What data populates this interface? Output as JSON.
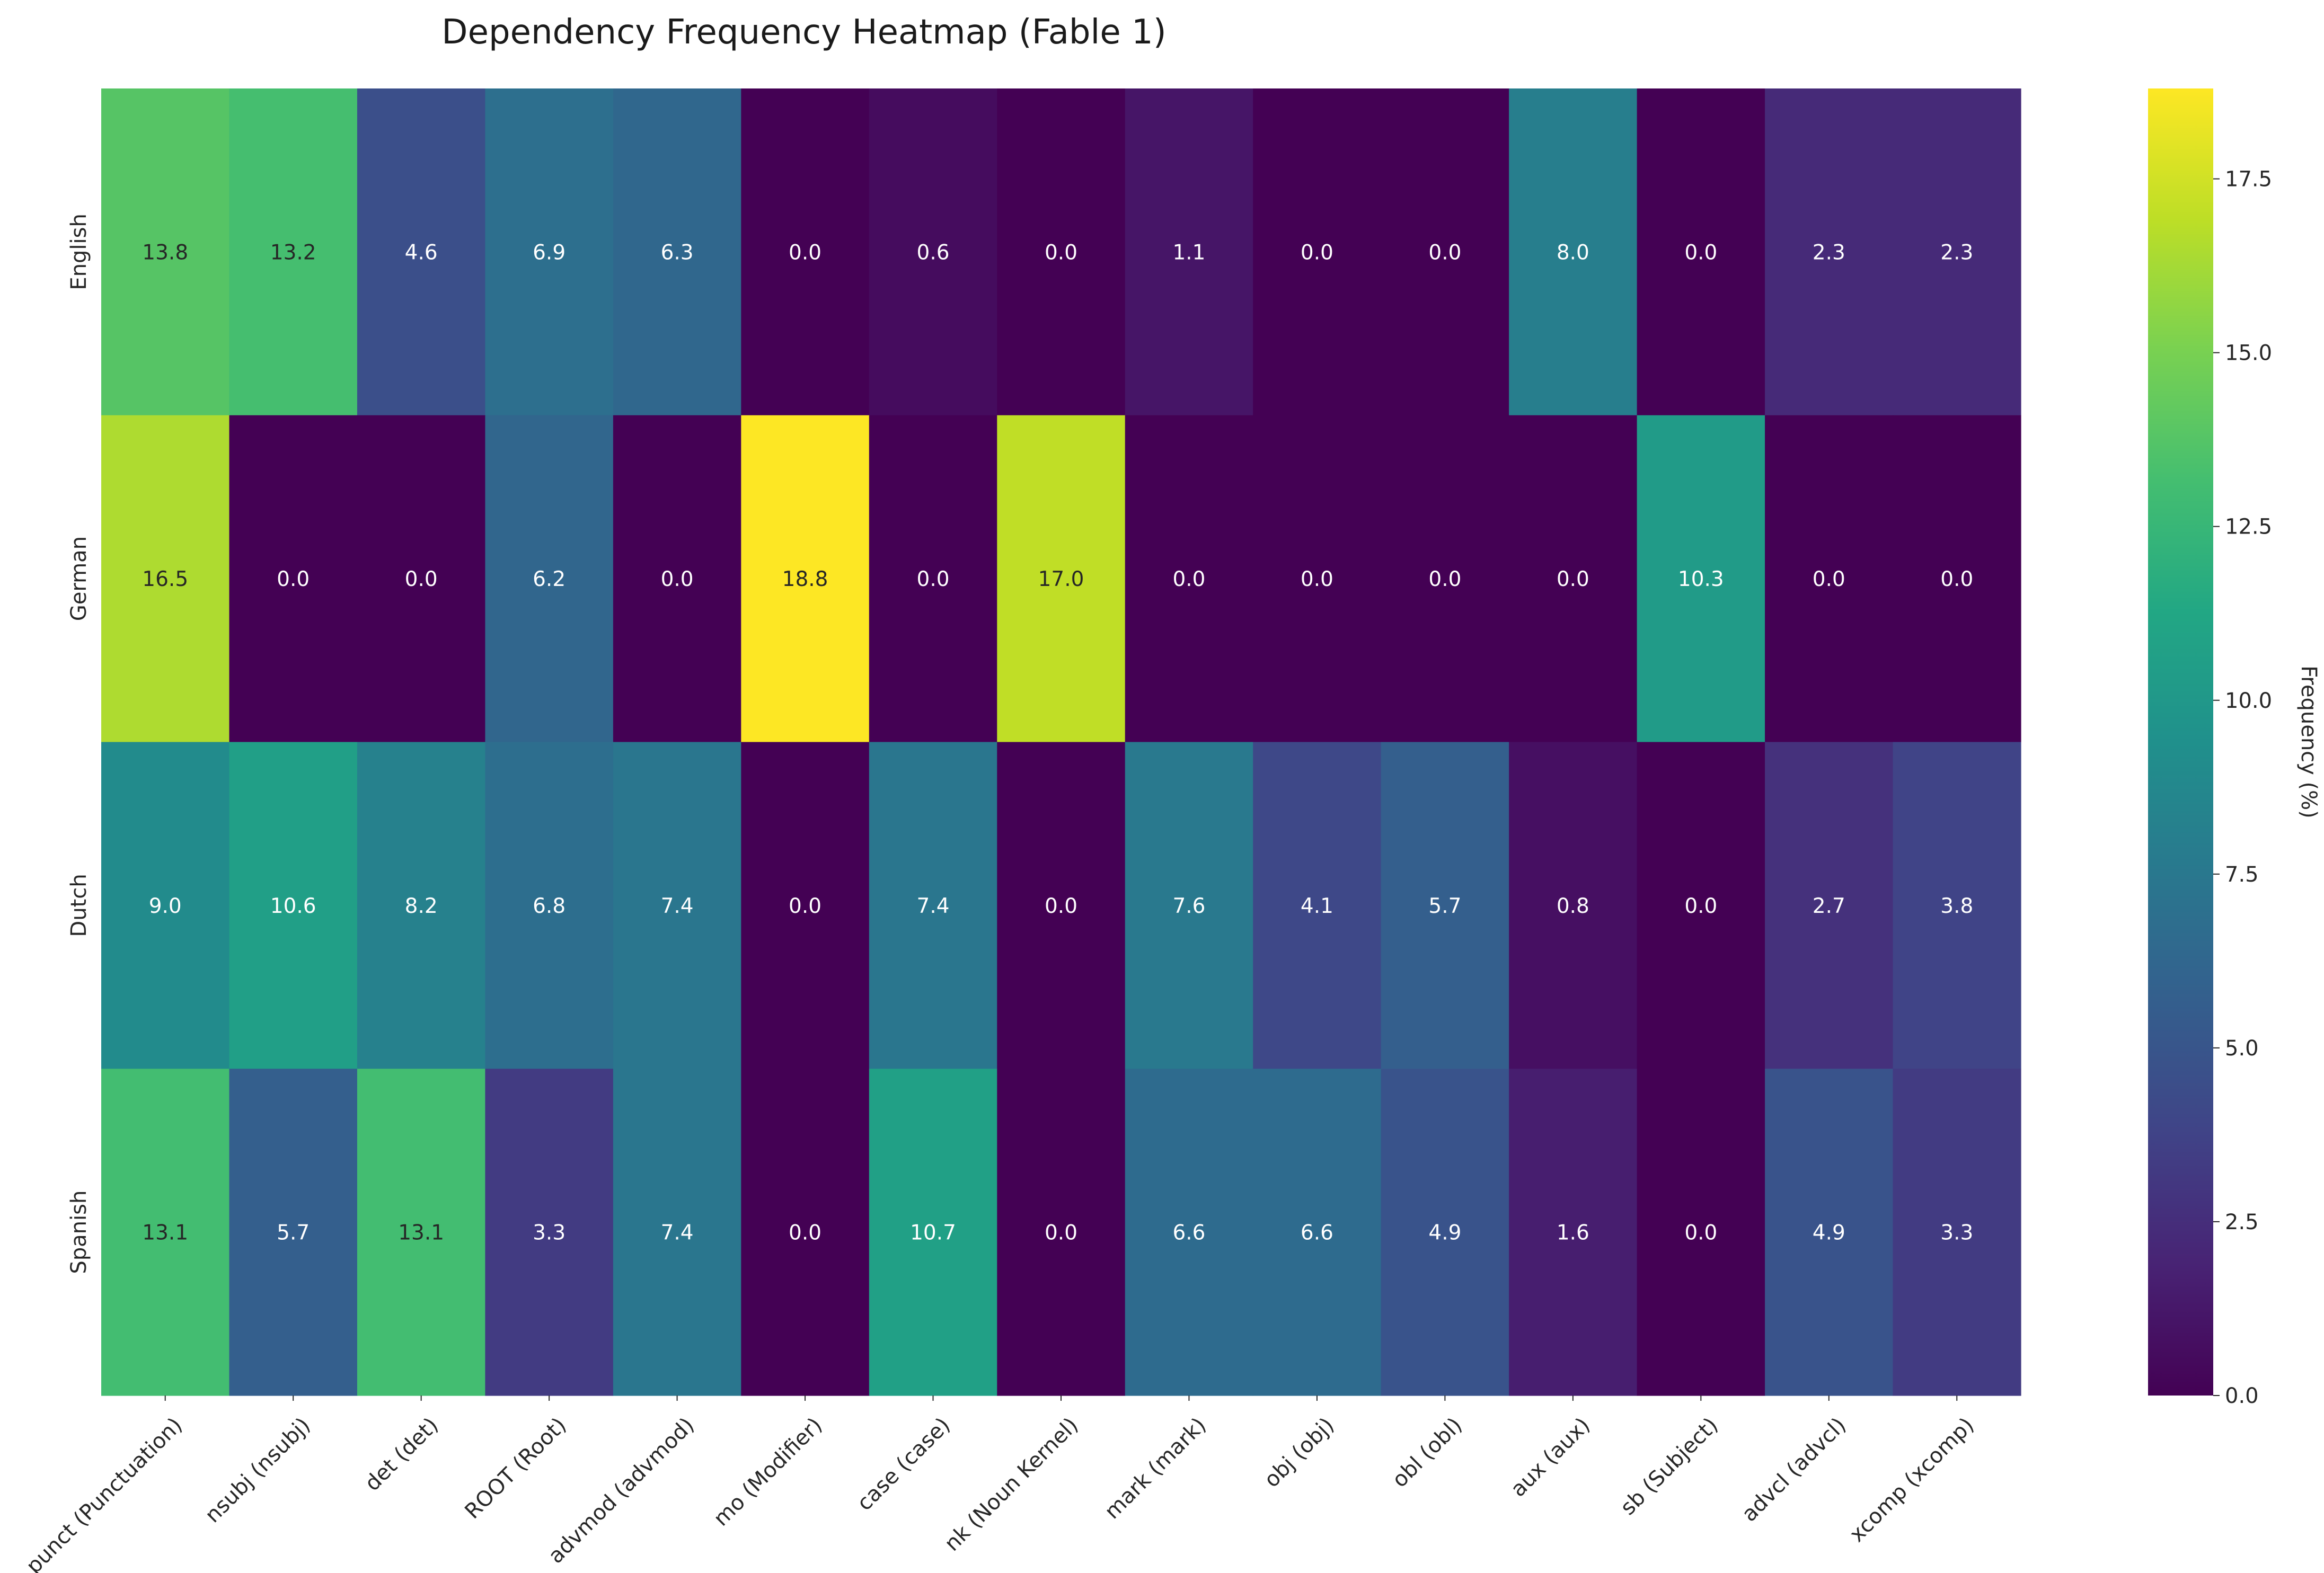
{
  "chart_data": {
    "type": "heatmap",
    "title": "Dependency Frequency Heatmap (Fable 1)",
    "rows": [
      "English",
      "German",
      "Dutch",
      "Spanish"
    ],
    "columns": [
      "punct (Punctuation)",
      "nsubj (nsubj)",
      "det (det)",
      "ROOT (Root)",
      "advmod (advmod)",
      "mo (Modifier)",
      "case (case)",
      "nk (Noun Kernel)",
      "mark (mark)",
      "obj (obj)",
      "obl (obl)",
      "aux (aux)",
      "sb (Subject)",
      "advcl (advcl)",
      "xcomp (xcomp)"
    ],
    "values": [
      [
        13.8,
        13.2,
        4.6,
        6.9,
        6.3,
        0.0,
        0.6,
        0.0,
        1.1,
        0.0,
        0.0,
        8.0,
        0.0,
        2.3,
        2.3
      ],
      [
        16.5,
        0.0,
        0.0,
        6.2,
        0.0,
        18.8,
        0.0,
        17.0,
        0.0,
        0.0,
        0.0,
        0.0,
        10.3,
        0.0,
        0.0
      ],
      [
        9.0,
        10.6,
        8.2,
        6.8,
        7.4,
        0.0,
        7.4,
        0.0,
        7.6,
        4.1,
        5.7,
        0.8,
        0.0,
        2.7,
        3.8
      ],
      [
        13.1,
        5.7,
        13.1,
        3.3,
        7.4,
        0.0,
        10.7,
        0.0,
        6.6,
        6.6,
        4.9,
        1.6,
        0.0,
        4.9,
        3.3
      ]
    ],
    "colormap": "viridis",
    "colorbar": {
      "label": "Frequency (%)",
      "range": [
        0,
        18.8
      ],
      "ticks": [
        "0.0",
        "2.5",
        "5.0",
        "7.5",
        "10.0",
        "12.5",
        "15.0",
        "17.5"
      ]
    },
    "annotations": true,
    "grid": false
  }
}
